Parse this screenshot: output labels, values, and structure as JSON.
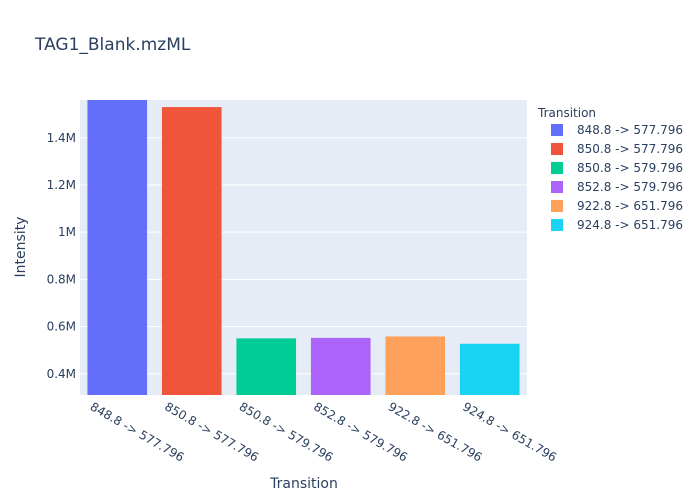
{
  "chart_data": {
    "type": "bar",
    "title": "TAG1_Blank.mzML",
    "xlabel": "Transition",
    "ylabel": "Intensity",
    "ylim": [
      310000,
      1560000
    ],
    "yticks": [
      400000,
      600000,
      800000,
      1000000,
      1200000,
      1400000
    ],
    "ytick_labels": [
      "0.4M",
      "0.6M",
      "0.8M",
      "1M",
      "1.2M",
      "1.4M"
    ],
    "legend_title": "Transition",
    "legend_position": "right",
    "categories": [
      "848.8 -> 577.796",
      "850.8 -> 577.796",
      "850.8 -> 579.796",
      "852.8 -> 579.796",
      "922.8 -> 651.796",
      "924.8 -> 651.796"
    ],
    "values": [
      1560000,
      1530000,
      550000,
      552000,
      558000,
      527000
    ],
    "colors": [
      "#636efa",
      "#EF553B",
      "#00cc96",
      "#ab63fa",
      "#FFA15A",
      "#19d3f3"
    ]
  }
}
